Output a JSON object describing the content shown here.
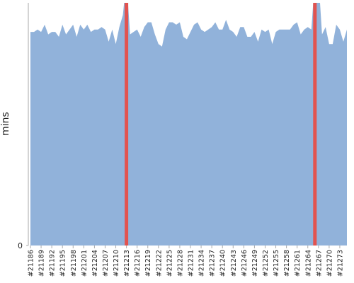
{
  "chart_data": {
    "type": "area",
    "y_label": "mins",
    "categories": [
      "#21186",
      null,
      null,
      "#21189",
      null,
      null,
      "#21192",
      null,
      null,
      "#21195",
      null,
      null,
      "#21198",
      null,
      null,
      "#21201",
      null,
      null,
      "#21204",
      null,
      null,
      "#21207",
      null,
      null,
      "#21210",
      null,
      null,
      "#21213",
      null,
      null,
      "#21216",
      null,
      null,
      "#21219",
      null,
      null,
      "#21222",
      null,
      null,
      "#21225",
      null,
      null,
      "#21228",
      null,
      null,
      "#21231",
      null,
      null,
      "#21234",
      null,
      null,
      "#21237",
      null,
      null,
      "#21240",
      null,
      null,
      "#21243",
      null,
      null,
      "#21246",
      null,
      null,
      "#21249",
      null,
      null,
      "#21252",
      null,
      null,
      "#21255",
      null,
      null,
      "#21258",
      null,
      null,
      "#21261",
      null,
      null,
      "#21264",
      null,
      null,
      "#21267",
      null,
      null,
      "#21270",
      null,
      null,
      "#21273",
      null,
      null
    ],
    "series": [
      {
        "type": "area",
        "color": "#91b2da",
        "values": [
          88,
          88,
          89,
          88,
          91,
          87,
          88,
          88,
          86,
          91,
          87,
          89,
          91,
          86,
          91,
          89,
          91,
          88,
          89,
          89,
          90,
          89,
          84,
          89,
          83,
          90,
          95,
          110,
          87,
          88,
          89,
          86,
          90,
          92,
          92,
          87,
          83,
          82,
          89,
          92,
          92,
          91,
          92,
          86,
          85,
          88,
          91,
          92,
          89,
          88,
          89,
          90,
          92,
          89,
          89,
          93,
          89,
          88,
          86,
          90,
          90,
          86,
          86,
          88,
          84,
          89,
          88,
          89,
          83,
          88,
          89,
          89,
          89,
          89,
          91,
          92,
          87,
          89,
          90,
          89,
          110,
          110,
          87,
          90,
          83,
          83,
          91,
          89,
          84,
          89
        ]
      },
      {
        "type": "bar",
        "color": "#e2534f",
        "values": [
          null,
          null,
          null,
          null,
          null,
          null,
          null,
          null,
          null,
          null,
          null,
          null,
          null,
          null,
          null,
          null,
          null,
          null,
          null,
          null,
          null,
          null,
          null,
          null,
          null,
          null,
          null,
          100,
          null,
          null,
          null,
          null,
          null,
          null,
          null,
          null,
          null,
          null,
          null,
          null,
          null,
          null,
          null,
          null,
          null,
          null,
          null,
          null,
          null,
          null,
          null,
          null,
          null,
          null,
          null,
          null,
          null,
          null,
          null,
          null,
          null,
          null,
          null,
          null,
          null,
          null,
          null,
          null,
          null,
          null,
          null,
          null,
          null,
          null,
          null,
          null,
          null,
          null,
          null,
          null,
          100,
          null,
          null,
          null,
          null,
          null,
          null,
          null,
          null,
          null
        ]
      }
    ],
    "ylim": [
      0,
      100
    ],
    "yticks": [
      0
    ]
  }
}
